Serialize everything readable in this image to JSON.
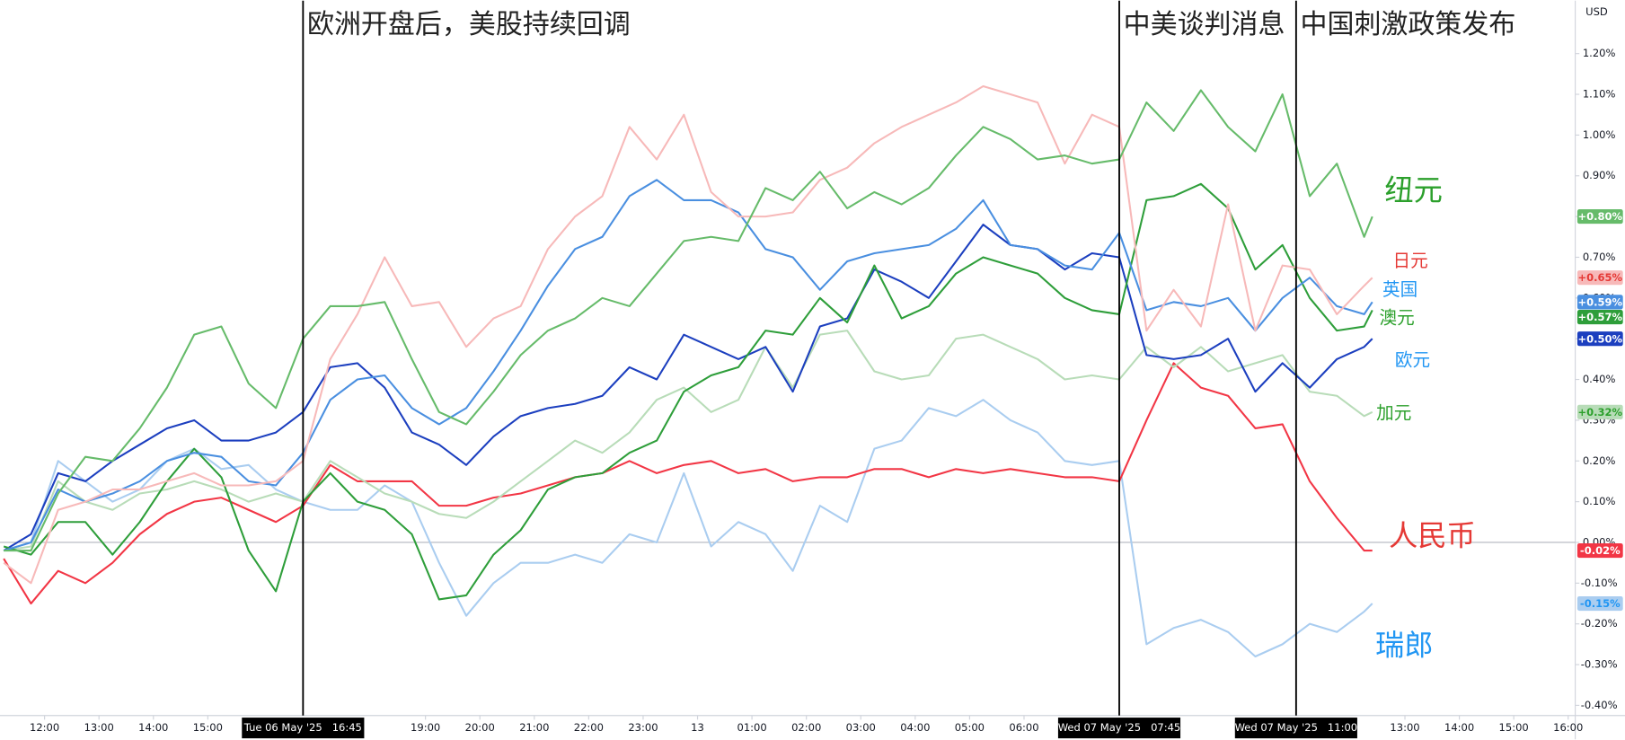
{
  "chart_data": {
    "type": "line",
    "currency": "USD",
    "x": [
      0.25,
      0.75,
      1.25,
      1.75,
      2.25,
      2.75,
      3.25,
      3.75,
      4.25,
      4.75,
      5.25,
      5.75,
      6.25,
      6.75,
      7.25,
      7.75,
      8.25,
      8.75,
      9.25,
      9.75,
      10.25,
      10.75,
      11.25,
      11.75,
      12.25,
      12.75,
      13.25,
      13.75,
      14.25,
      14.75,
      15.25,
      15.75,
      16.25,
      16.75,
      17.25,
      17.75,
      18.25,
      18.75,
      19.25,
      19.75,
      20.25,
      20.75,
      21.25,
      21.75,
      22.25,
      22.75,
      23.25,
      23.75,
      24.25,
      24.75,
      25.25,
      25.4
    ],
    "xlim": [
      0.181,
      29.13
    ],
    "xticks": [
      {
        "value": 1,
        "label": "12:00"
      },
      {
        "value": 2,
        "label": "13:00"
      },
      {
        "value": 3,
        "label": "14:00"
      },
      {
        "value": 4,
        "label": "15:00"
      },
      {
        "value": 8,
        "label": "19:00"
      },
      {
        "value": 9,
        "label": "20:00"
      },
      {
        "value": 10,
        "label": "21:00"
      },
      {
        "value": 11,
        "label": "22:00"
      },
      {
        "value": 12,
        "label": "23:00"
      },
      13,
      {
        "value": 14,
        "label": "01:00"
      },
      {
        "value": 15,
        "label": "02:00"
      },
      {
        "value": 16,
        "label": "03:00"
      },
      {
        "value": 17,
        "label": "04:00"
      },
      {
        "value": 18,
        "label": "05:00"
      },
      {
        "value": 19,
        "label": "06:00"
      },
      {
        "value": 26,
        "label": "13:00"
      },
      {
        "value": 27,
        "label": "14:00"
      },
      {
        "value": 28,
        "label": "15:00"
      },
      {
        "value": 29,
        "label": "16:00"
      }
    ],
    "ylim": [
      -0.425,
      1.33
    ],
    "yticks": [
      {
        "value": 1.2,
        "label": "1.20%"
      },
      {
        "value": 1.1,
        "label": "1.10%"
      },
      {
        "value": 1.0,
        "label": "1.00%"
      },
      {
        "value": 0.9,
        "label": "0.90%"
      },
      {
        "value": 0.8,
        "label": "0.80%"
      },
      {
        "value": 0.7,
        "label": "0.70%"
      },
      {
        "value": 0.6,
        "label": "0.60%"
      },
      {
        "value": 0.5,
        "label": "0.50%"
      },
      {
        "value": 0.4,
        "label": "0.40%"
      },
      {
        "value": 0.3,
        "label": "0.30%"
      },
      {
        "value": 0.2,
        "label": "0.20%"
      },
      {
        "value": 0.1,
        "label": "0.10%"
      },
      {
        "value": 0,
        "label": "0.00%"
      },
      {
        "value": -0.1,
        "label": "-0.10%"
      },
      {
        "value": -0.2,
        "label": "-0.20%"
      },
      {
        "value": -0.3,
        "label": "-0.30%"
      },
      {
        "value": -0.4,
        "label": "-0.40%"
      }
    ],
    "vlines": [
      {
        "x": 5.75,
        "label": "Tue 06 May '25   16:45",
        "annotation": "欧洲开盘后，美股持续回调"
      },
      {
        "x": 20.75,
        "label": "Wed 07 May '25   07:45",
        "annotation": "中美谈判消息"
      },
      {
        "x": 24,
        "label": "Wed 07 May '25   11:00",
        "annotation": "中国刺激政策发布"
      }
    ],
    "series": [
      {
        "name": "纽元",
        "color": "#66bb6a",
        "label_color": "#2ca02c",
        "end_label": "+0.80%",
        "values": [
          -0.02,
          -0.02,
          0.12,
          0.21,
          0.2,
          0.28,
          0.38,
          0.51,
          0.53,
          0.39,
          0.33,
          0.5,
          0.58,
          0.58,
          0.59,
          0.45,
          0.32,
          0.29,
          0.37,
          0.46,
          0.52,
          0.55,
          0.6,
          0.58,
          0.66,
          0.74,
          0.75,
          0.74,
          0.87,
          0.84,
          0.91,
          0.82,
          0.86,
          0.83,
          0.87,
          0.95,
          1.02,
          0.99,
          0.94,
          0.95,
          0.93,
          0.94,
          1.08,
          1.01,
          1.11,
          1.02,
          0.96,
          1.1,
          0.85,
          0.93,
          0.75,
          0.8
        ]
      },
      {
        "name": "日元",
        "color": "#f7b9b9",
        "label_color": "#e53935",
        "end_label": "+0.65%",
        "values": [
          -0.05,
          -0.1,
          0.08,
          0.1,
          0.13,
          0.13,
          0.15,
          0.17,
          0.14,
          0.14,
          0.15,
          0.2,
          0.45,
          0.56,
          0.7,
          0.58,
          0.59,
          0.48,
          0.55,
          0.58,
          0.72,
          0.8,
          0.85,
          1.02,
          0.94,
          1.05,
          0.86,
          0.8,
          0.8,
          0.81,
          0.89,
          0.92,
          0.98,
          1.02,
          1.05,
          1.08,
          1.12,
          1.1,
          1.08,
          0.93,
          1.05,
          1.02,
          0.52,
          0.62,
          0.53,
          0.83,
          0.52,
          0.68,
          0.67,
          0.56,
          0.63,
          0.65
        ]
      },
      {
        "name": "英国",
        "color": "#4a8fe0",
        "label_color": "#2196f3",
        "end_label": "+0.59%",
        "values": [
          -0.02,
          0.0,
          0.13,
          0.1,
          0.12,
          0.15,
          0.2,
          0.22,
          0.21,
          0.15,
          0.14,
          0.22,
          0.35,
          0.4,
          0.41,
          0.33,
          0.29,
          0.33,
          0.42,
          0.52,
          0.63,
          0.72,
          0.75,
          0.85,
          0.89,
          0.84,
          0.84,
          0.81,
          0.72,
          0.7,
          0.62,
          0.69,
          0.71,
          0.72,
          0.73,
          0.77,
          0.84,
          0.73,
          0.72,
          0.68,
          0.67,
          0.76,
          0.57,
          0.59,
          0.58,
          0.6,
          0.52,
          0.6,
          0.65,
          0.58,
          0.56,
          0.59
        ]
      },
      {
        "name": "澳元",
        "color": "#2e9e3a",
        "label_color": "#2ca02c",
        "end_label": "+0.57%",
        "values": [
          -0.01,
          -0.03,
          0.05,
          0.05,
          -0.03,
          0.05,
          0.15,
          0.23,
          0.16,
          -0.02,
          -0.12,
          0.1,
          0.17,
          0.1,
          0.08,
          0.02,
          -0.14,
          -0.13,
          -0.03,
          0.03,
          0.13,
          0.16,
          0.17,
          0.22,
          0.25,
          0.37,
          0.41,
          0.43,
          0.52,
          0.51,
          0.6,
          0.54,
          0.68,
          0.55,
          0.58,
          0.66,
          0.7,
          0.68,
          0.66,
          0.6,
          0.57,
          0.56,
          0.84,
          0.85,
          0.88,
          0.82,
          0.67,
          0.73,
          0.6,
          0.52,
          0.53,
          0.57
        ]
      },
      {
        "name": "欧元",
        "color": "#1c3fbf",
        "label_color": "#2196f3",
        "end_label": "+0.50%",
        "values": [
          -0.02,
          0.02,
          0.17,
          0.15,
          0.2,
          0.24,
          0.28,
          0.3,
          0.25,
          0.25,
          0.27,
          0.32,
          0.43,
          0.44,
          0.38,
          0.27,
          0.24,
          0.19,
          0.26,
          0.31,
          0.33,
          0.34,
          0.36,
          0.43,
          0.4,
          0.51,
          0.48,
          0.45,
          0.48,
          0.37,
          0.53,
          0.55,
          0.67,
          0.64,
          0.6,
          0.69,
          0.78,
          0.73,
          0.72,
          0.67,
          0.71,
          0.7,
          0.46,
          0.45,
          0.46,
          0.5,
          0.37,
          0.44,
          0.38,
          0.45,
          0.48,
          0.5
        ]
      },
      {
        "name": "加元",
        "color": "#b8dcb8",
        "label_color": "#2ca02c",
        "end_label": "+0.32%",
        "values": [
          -0.02,
          -0.01,
          0.15,
          0.1,
          0.08,
          0.12,
          0.13,
          0.15,
          0.13,
          0.1,
          0.12,
          0.1,
          0.2,
          0.16,
          0.12,
          0.1,
          0.07,
          0.06,
          0.1,
          0.15,
          0.2,
          0.25,
          0.22,
          0.27,
          0.35,
          0.38,
          0.32,
          0.35,
          0.48,
          0.38,
          0.51,
          0.52,
          0.42,
          0.4,
          0.41,
          0.5,
          0.51,
          0.48,
          0.45,
          0.4,
          0.41,
          0.4,
          0.48,
          0.43,
          0.48,
          0.42,
          0.44,
          0.46,
          0.37,
          0.36,
          0.31,
          0.32
        ]
      },
      {
        "name": "人民币",
        "color": "#f23645",
        "label_color": "#e53935",
        "end_label": "-0.02%",
        "values": [
          -0.04,
          -0.15,
          -0.07,
          -0.1,
          -0.05,
          0.02,
          0.07,
          0.1,
          0.11,
          0.08,
          0.05,
          0.09,
          0.19,
          0.15,
          0.15,
          0.15,
          0.09,
          0.09,
          0.11,
          0.12,
          0.14,
          0.16,
          0.17,
          0.2,
          0.17,
          0.19,
          0.2,
          0.17,
          0.18,
          0.15,
          0.16,
          0.16,
          0.18,
          0.18,
          0.16,
          0.18,
          0.17,
          0.18,
          0.17,
          0.16,
          0.16,
          0.15,
          0.3,
          0.44,
          0.38,
          0.36,
          0.28,
          0.29,
          0.15,
          0.06,
          -0.02,
          -0.02
        ]
      },
      {
        "name": "瑞郎",
        "color": "#aacdf0",
        "label_color": "#2196f3",
        "end_label": "-0.15%",
        "values": [
          -0.02,
          0.0,
          0.2,
          0.15,
          0.1,
          0.13,
          0.2,
          0.23,
          0.18,
          0.19,
          0.13,
          0.1,
          0.08,
          0.08,
          0.14,
          0.1,
          -0.05,
          -0.18,
          -0.1,
          -0.05,
          -0.05,
          -0.03,
          -0.05,
          0.02,
          0.0,
          0.17,
          -0.01,
          0.05,
          0.02,
          -0.07,
          0.09,
          0.05,
          0.23,
          0.25,
          0.33,
          0.31,
          0.35,
          0.3,
          0.27,
          0.2,
          0.19,
          0.2,
          -0.25,
          -0.21,
          -0.19,
          -0.22,
          -0.28,
          -0.25,
          -0.2,
          -0.22,
          -0.17,
          -0.15
        ]
      }
    ]
  }
}
